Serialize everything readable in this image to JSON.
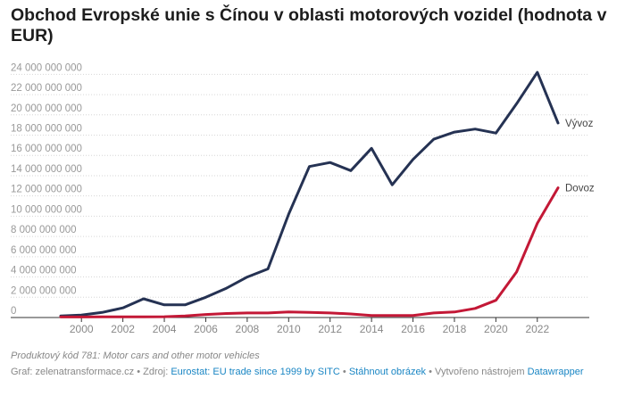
{
  "chart_data": {
    "type": "line",
    "title": "Obchod Evropské unie s Čínou v oblasti motorových vozidel (hodnota v EUR)",
    "x": [
      1999,
      2000,
      2001,
      2002,
      2003,
      2004,
      2005,
      2006,
      2007,
      2008,
      2009,
      2010,
      2011,
      2012,
      2013,
      2014,
      2015,
      2016,
      2017,
      2018,
      2019,
      2020,
      2021,
      2022,
      2023
    ],
    "series": [
      {
        "name": "Vývoz",
        "color": "#253253",
        "values": [
          150000000,
          250000000,
          500000000,
          950000000,
          1850000000,
          1250000000,
          1250000000,
          2000000000,
          2900000000,
          4000000000,
          4800000000,
          10200000000,
          14900000000,
          15300000000,
          14500000000,
          16700000000,
          13100000000,
          15600000000,
          17600000000,
          18300000000,
          18600000000,
          18200000000,
          21100000000,
          24200000000,
          19200000000
        ]
      },
      {
        "name": "Dovoz",
        "color": "#c31836",
        "values": [
          50000000,
          50000000,
          60000000,
          60000000,
          60000000,
          80000000,
          150000000,
          300000000,
          400000000,
          450000000,
          450000000,
          550000000,
          500000000,
          450000000,
          350000000,
          200000000,
          200000000,
          200000000,
          450000000,
          550000000,
          900000000,
          1700000000,
          4500000000,
          9300000000,
          12800000000
        ]
      }
    ],
    "ylim": [
      0,
      25000000000
    ],
    "yticks": [
      {
        "v": 0,
        "label": "0"
      },
      {
        "v": 2000000000,
        "label": "2 000 000 000"
      },
      {
        "v": 4000000000,
        "label": "4 000 000 000"
      },
      {
        "v": 6000000000,
        "label": "6 000 000 000"
      },
      {
        "v": 8000000000,
        "label": "8 000 000 000"
      },
      {
        "v": 10000000000,
        "label": "10 000 000 000"
      },
      {
        "v": 12000000000,
        "label": "12 000 000 000"
      },
      {
        "v": 14000000000,
        "label": "14 000 000 000"
      },
      {
        "v": 16000000000,
        "label": "16 000 000 000"
      },
      {
        "v": 18000000000,
        "label": "18 000 000 000"
      },
      {
        "v": 20000000000,
        "label": "20 000 000 000"
      },
      {
        "v": 22000000000,
        "label": "22 000 000 000"
      },
      {
        "v": 24000000000,
        "label": "24 000 000 000"
      }
    ],
    "xticks": [
      {
        "v": 2000,
        "label": "2000"
      },
      {
        "v": 2002,
        "label": "2002"
      },
      {
        "v": 2004,
        "label": "2004"
      },
      {
        "v": 2006,
        "label": "2006"
      },
      {
        "v": 2008,
        "label": "2008"
      },
      {
        "v": 2010,
        "label": "2010"
      },
      {
        "v": 2012,
        "label": "2012"
      },
      {
        "v": 2014,
        "label": "2014"
      },
      {
        "v": 2016,
        "label": "2016"
      },
      {
        "v": 2018,
        "label": "2018"
      },
      {
        "v": 2020,
        "label": "2020"
      },
      {
        "v": 2022,
        "label": "2022"
      }
    ],
    "xlim": [
      1999,
      2023
    ],
    "grid": "horizontal, dotted",
    "legend": "direct labels at line ends"
  },
  "notes": "Produktový kód 781: Motor cars and other motor vehicles",
  "footer": {
    "graph_prefix": "Graf: zelenatransformace.cz • Zdroj: ",
    "source_link": "Eurostat: EU trade since 1999 by SITC",
    "sep1": " • ",
    "download_link": "Stáhnout obrázek",
    "sep2": " • Vytvořeno nástrojem ",
    "tool_link": "Datawrapper"
  }
}
